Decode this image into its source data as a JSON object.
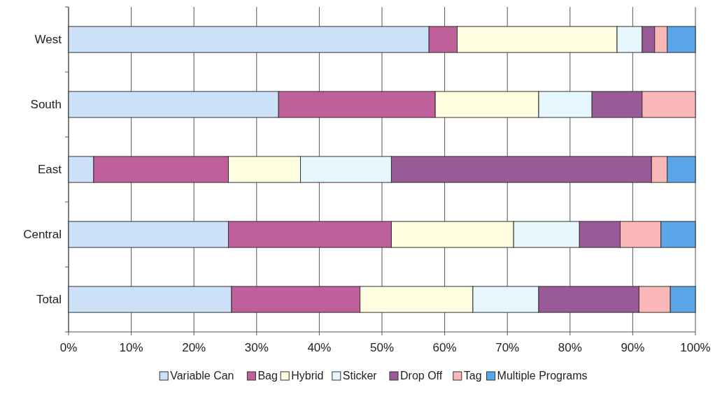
{
  "chart_data": {
    "type": "bar",
    "orientation": "horizontal",
    "stacked": true,
    "categories": [
      "West",
      "South",
      "East",
      "Central",
      "Total"
    ],
    "series": [
      {
        "name": "Variable Can",
        "color": "#cce0f8",
        "values": [
          57.5,
          33.5,
          4,
          25.5,
          26
        ]
      },
      {
        "name": "Bag",
        "color": "#c0609a",
        "values": [
          4.5,
          25,
          21.5,
          26,
          20.5
        ]
      },
      {
        "name": "Hybrid",
        "color": "#fefde0",
        "values": [
          25.5,
          16.5,
          11.5,
          19.5,
          18
        ]
      },
      {
        "name": "Sticker",
        "color": "#e6f6fd",
        "values": [
          4,
          8.5,
          14.5,
          10.5,
          10.5
        ]
      },
      {
        "name": "Drop Off",
        "color": "#9a5a98",
        "values": [
          2,
          8,
          41.5,
          6.5,
          16
        ]
      },
      {
        "name": "Tag",
        "color": "#fbb8b8",
        "values": [
          2,
          8.5,
          2.5,
          6.5,
          5
        ]
      },
      {
        "name": "Multiple Programs",
        "color": "#5aa6e8",
        "values": [
          4.5,
          0,
          4.5,
          5.5,
          4
        ]
      }
    ],
    "xlim": [
      0,
      100
    ],
    "xticks": [
      {
        "value": 0,
        "label": "0%"
      },
      {
        "value": 10,
        "label": "10%"
      },
      {
        "value": 20,
        "label": "20%"
      },
      {
        "value": 30,
        "label": "30%"
      },
      {
        "value": 40,
        "label": "40%"
      },
      {
        "value": 50,
        "label": "50%"
      },
      {
        "value": 60,
        "label": "60%"
      },
      {
        "value": 70,
        "label": "70%"
      },
      {
        "value": 80,
        "label": "80%"
      },
      {
        "value": 90,
        "label": "90%"
      },
      {
        "value": 100,
        "label": "100%"
      }
    ],
    "grid": "x",
    "legend": "bottom"
  }
}
